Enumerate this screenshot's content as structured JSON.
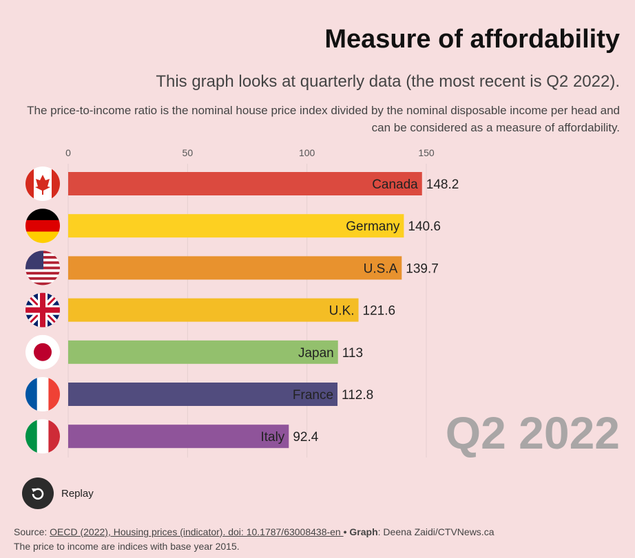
{
  "header": {
    "title": "Measure of affordability",
    "subtitle": "This graph looks at quarterly data (the most recent is Q2 2022).",
    "description": "The price-to-income ratio is the nominal house price index divided by the nominal disposable income per head and can be considered as a measure of affordability."
  },
  "chart_data": {
    "type": "bar",
    "orientation": "horizontal",
    "period_label": "Q2 2022",
    "x_ticks": [
      "0",
      "50",
      "100",
      "150"
    ],
    "x_tick_values": [
      0,
      50,
      100,
      150
    ],
    "xlim": [
      0,
      150
    ],
    "grid": true,
    "categories": [
      "Canada",
      "Germany",
      "U.S.A",
      "U.K.",
      "Japan",
      "France",
      "Italy"
    ],
    "values": [
      148.2,
      140.6,
      139.7,
      121.6,
      113,
      112.8,
      92.4
    ],
    "value_labels": [
      "148.2",
      "140.6",
      "139.7",
      "121.6",
      "113",
      "112.8",
      "92.4"
    ],
    "colors": [
      "#db4a3f",
      "#fdd021",
      "#e8922e",
      "#f4bd25",
      "#93c06d",
      "#514c7e",
      "#8f549a"
    ],
    "flags": [
      "canada-flag-icon",
      "germany-flag-icon",
      "usa-flag-icon",
      "uk-flag-icon",
      "japan-flag-icon",
      "france-flag-icon",
      "italy-flag-icon"
    ]
  },
  "controls": {
    "replay_label": "Replay",
    "replay_icon": "replay-icon"
  },
  "footer": {
    "source_prefix": "Source: ",
    "source_link": "OECD (2022), Housing prices (indicator). doi: 10.1787/63008438-en ",
    "separator": " • ",
    "graph_label": "Graph",
    "graph_credit": ": Deena Zaidi/CTVNews.ca",
    "note": "The price to income are indices with base year 2015."
  }
}
